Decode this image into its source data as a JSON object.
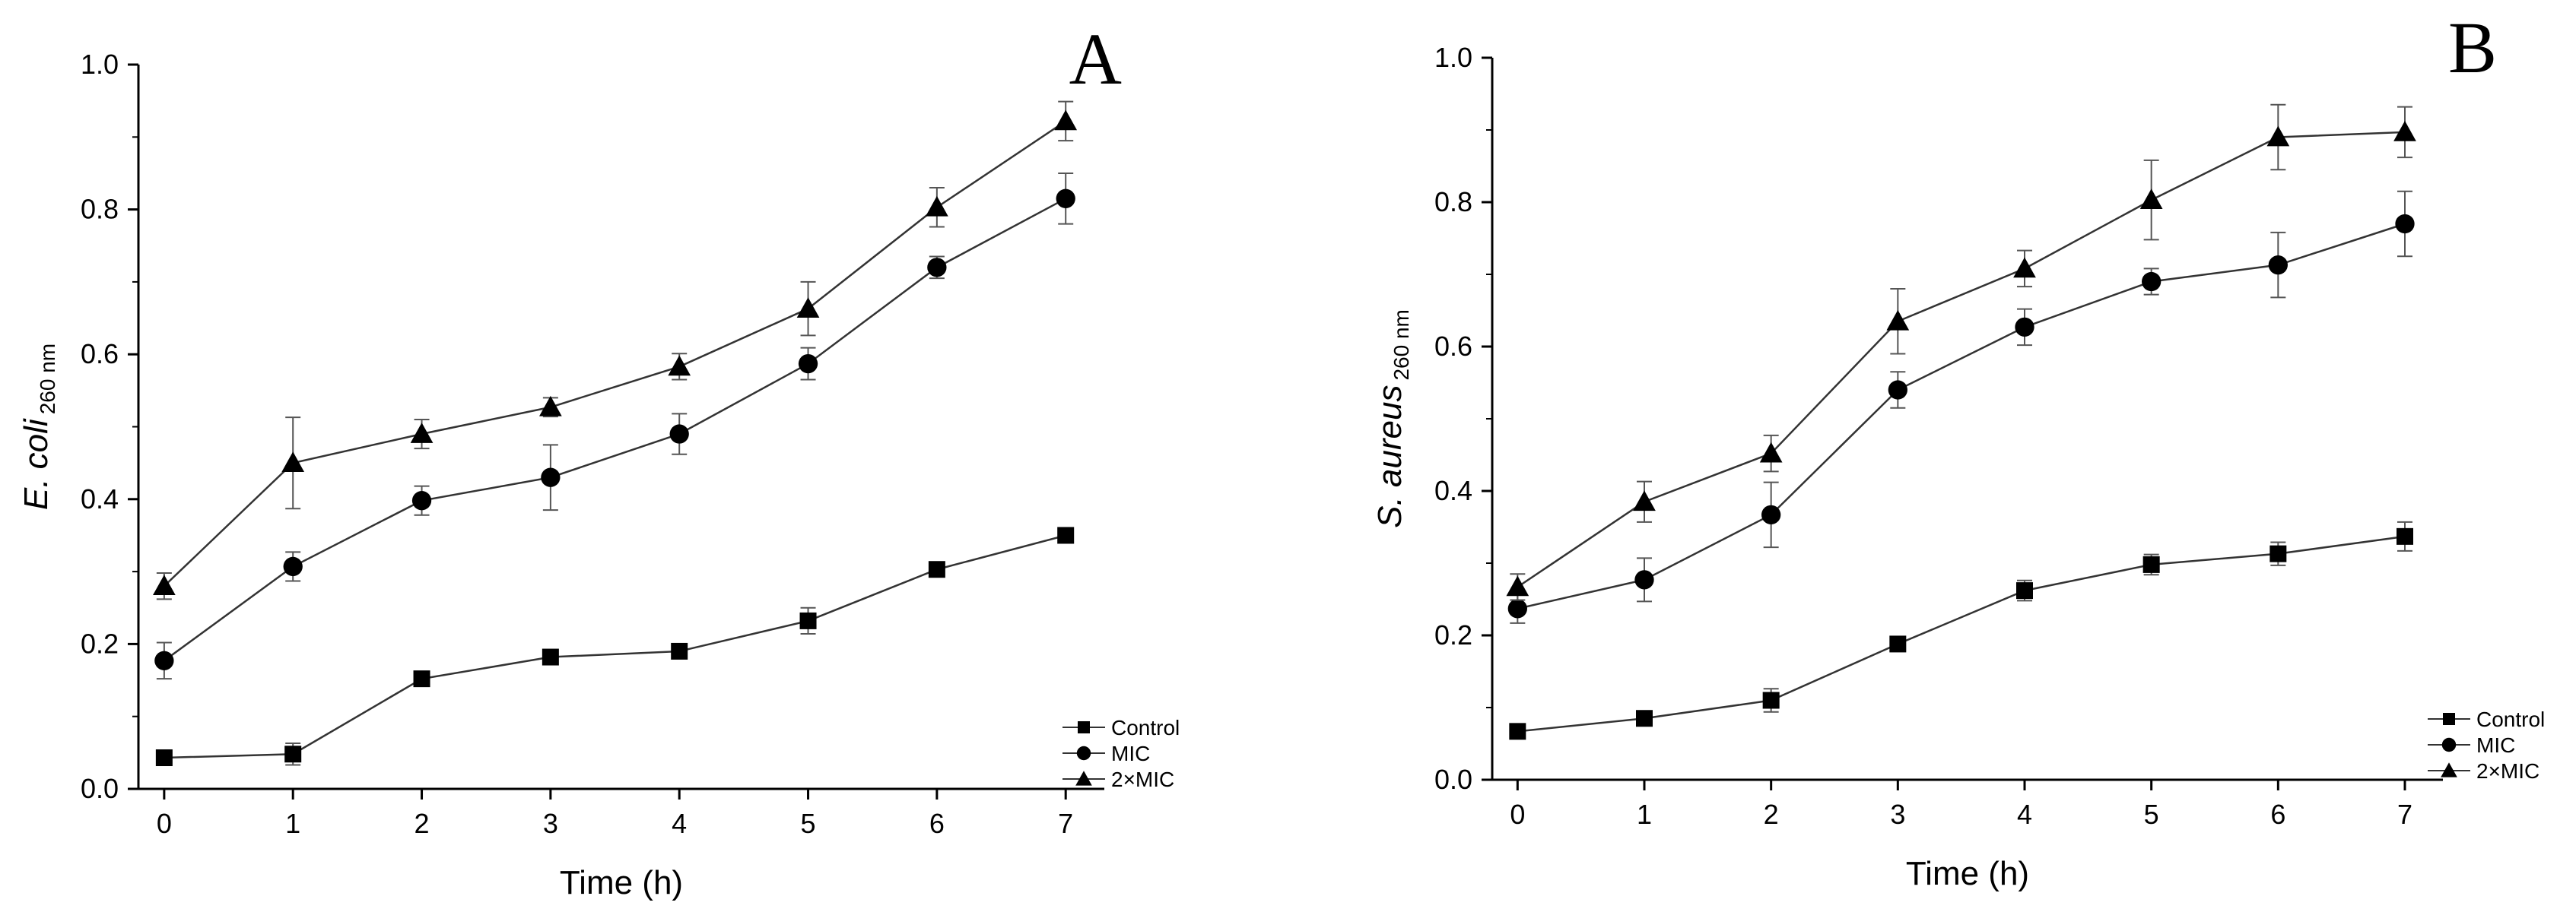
{
  "chart_data": [
    {
      "type": "line",
      "panel_label": "A",
      "xlabel": "Time (h)",
      "ylabel": {
        "main": "E. coli",
        "subscript": "260 nm"
      },
      "categories": [
        0,
        1,
        2,
        3,
        4,
        5,
        6,
        7
      ],
      "xlim": [
        -0.2,
        7.3
      ],
      "ylim": [
        0.0,
        1.0
      ],
      "yticks": [
        "0.0",
        "0.2",
        "0.4",
        "0.6",
        "0.8",
        "1.0"
      ],
      "legend_position": "bottom-right",
      "series": [
        {
          "name": "Control",
          "marker": "square",
          "values": [
            0.043,
            0.048,
            0.152,
            0.182,
            0.19,
            0.232,
            0.303,
            0.35
          ],
          "errors": [
            0.01,
            0.015,
            0.008,
            0.006,
            0.006,
            0.018,
            0.008,
            0.008
          ]
        },
        {
          "name": "MIC",
          "marker": "circle",
          "values": [
            0.177,
            0.307,
            0.398,
            0.43,
            0.49,
            0.587,
            0.72,
            0.815
          ],
          "errors": [
            0.025,
            0.02,
            0.02,
            0.045,
            0.028,
            0.022,
            0.015,
            0.035
          ]
        },
        {
          "name": "2×MIC",
          "marker": "triangle",
          "values": [
            0.28,
            0.45,
            0.49,
            0.527,
            0.583,
            0.663,
            0.803,
            0.922
          ],
          "errors": [
            0.018,
            0.063,
            0.02,
            0.013,
            0.018,
            0.037,
            0.027,
            0.027
          ]
        }
      ]
    },
    {
      "type": "line",
      "panel_label": "B",
      "xlabel": "Time (h)",
      "ylabel": {
        "main": "S. aureus",
        "subscript": "260 nm"
      },
      "categories": [
        0,
        1,
        2,
        3,
        4,
        5,
        6,
        7
      ],
      "xlim": [
        -0.2,
        7.3
      ],
      "ylim": [
        0.0,
        1.0
      ],
      "yticks": [
        "0.0",
        "0.2",
        "0.4",
        "0.6",
        "0.8",
        "1.0"
      ],
      "legend_position": "bottom-right",
      "series": [
        {
          "name": "Control",
          "marker": "square",
          "values": [
            0.067,
            0.085,
            0.11,
            0.188,
            0.262,
            0.298,
            0.313,
            0.337
          ],
          "errors": [
            0.008,
            0.01,
            0.016,
            0.006,
            0.014,
            0.014,
            0.016,
            0.02
          ]
        },
        {
          "name": "MIC",
          "marker": "circle",
          "values": [
            0.237,
            0.277,
            0.367,
            0.54,
            0.627,
            0.69,
            0.713,
            0.77
          ],
          "errors": [
            0.02,
            0.03,
            0.045,
            0.025,
            0.025,
            0.018,
            0.045,
            0.045
          ]
        },
        {
          "name": "2×MIC",
          "marker": "triangle",
          "values": [
            0.267,
            0.385,
            0.452,
            0.635,
            0.708,
            0.803,
            0.89,
            0.897
          ],
          "errors": [
            0.018,
            0.028,
            0.025,
            0.045,
            0.025,
            0.055,
            0.045,
            0.035
          ]
        }
      ]
    }
  ]
}
